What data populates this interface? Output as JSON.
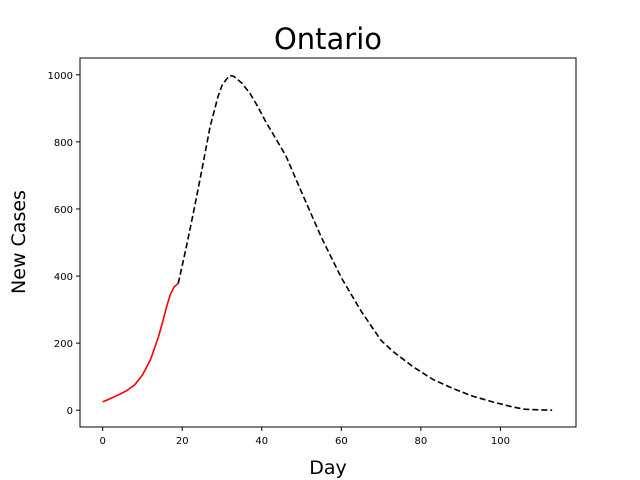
{
  "chart_data": {
    "type": "line",
    "title": "Ontario",
    "xlabel": "Day",
    "ylabel": "New Cases",
    "xlim": [
      -5.7,
      119
    ],
    "ylim": [
      -50,
      1050
    ],
    "xticks": [
      0,
      20,
      40,
      60,
      80,
      100
    ],
    "yticks": [
      0,
      200,
      400,
      600,
      800,
      1000
    ],
    "grid": false,
    "series": [
      {
        "color": "#ff0000",
        "style": "solid",
        "x": [
          0,
          2,
          4,
          6,
          8,
          10,
          12,
          14,
          15,
          16,
          17,
          18,
          19
        ],
        "y": [
          25,
          35,
          46,
          58,
          75,
          105,
          150,
          218,
          260,
          305,
          345,
          368,
          378
        ]
      },
      {
        "color": "#000000",
        "style": "dashed",
        "x": [
          19,
          21,
          23,
          25,
          27,
          29,
          30,
          31,
          32,
          33,
          34,
          35,
          37,
          39,
          41,
          43,
          46,
          50,
          55,
          60,
          65,
          70,
          73,
          78,
          83,
          88,
          93,
          98,
          103,
          106,
          110,
          113
        ],
        "y": [
          378,
          485,
          600,
          720,
          845,
          935,
          968,
          985,
          998,
          995,
          985,
          975,
          945,
          905,
          860,
          820,
          760,
          650,
          515,
          395,
          295,
          208,
          175,
          130,
          92,
          65,
          42,
          25,
          10,
          3,
          1,
          0
        ]
      }
    ]
  }
}
